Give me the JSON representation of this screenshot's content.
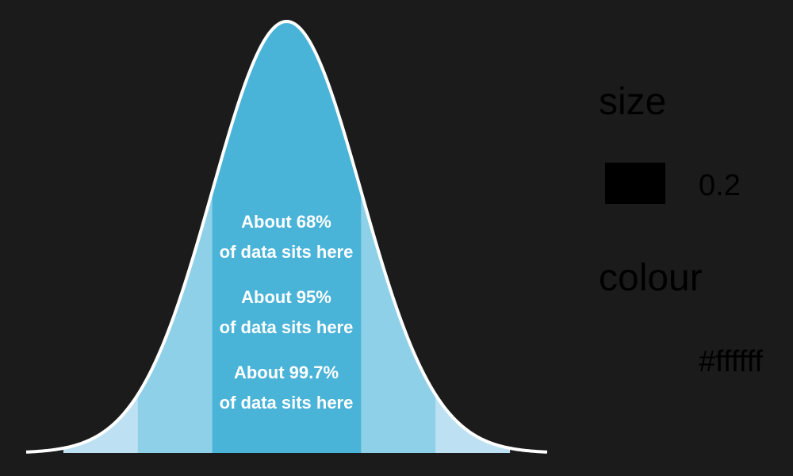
{
  "chart_data": {
    "type": "area",
    "title": "",
    "xlabel": "",
    "ylabel": "",
    "distribution": "normal",
    "mean": 0,
    "sd": 1,
    "xlim": [
      -3.5,
      3.5
    ],
    "bands": [
      {
        "from": -3,
        "to": 3,
        "color": "#bde1f2"
      },
      {
        "from": -2,
        "to": 2,
        "color": "#8fd0e9"
      },
      {
        "from": -1,
        "to": 1,
        "color": "#4ab3d8"
      }
    ],
    "curve_color": "#ffffff",
    "annotations": [
      {
        "line1": "About 68%",
        "line2": "of data sits here"
      },
      {
        "line1": "About 95%",
        "line2": "of data sits here"
      },
      {
        "line1": "About 99.7%",
        "line2": "of data sits here"
      }
    ]
  },
  "legend": {
    "size_title": "size",
    "size_value": "0.2",
    "size_swatch_color": "#000000",
    "colour_title": "colour",
    "colour_value": "#ffffff"
  }
}
